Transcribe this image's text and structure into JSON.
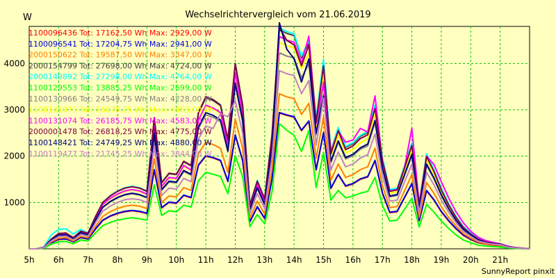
{
  "chart_data": {
    "type": "line",
    "title": "Wechselrichtervergleich vom 21.06.2019",
    "ylabel": "W",
    "xlabel": "",
    "footer": "SunnyReport pinxit",
    "ylim": [
      0,
      4800
    ],
    "yticks": [
      1000,
      2000,
      3000,
      4000
    ],
    "xlim": [
      5,
      22
    ],
    "xticks": [
      {
        "h": 5,
        "label": "5h"
      },
      {
        "h": 6,
        "label": "6h"
      },
      {
        "h": 7,
        "label": "7h"
      },
      {
        "h": 8,
        "label": "8h"
      },
      {
        "h": 9,
        "label": "9h"
      },
      {
        "h": 10,
        "label": "10h"
      },
      {
        "h": 11,
        "label": "11h"
      },
      {
        "h": 12,
        "label": "12h"
      },
      {
        "h": 13,
        "label": "13h"
      },
      {
        "h": 14,
        "label": "14h"
      },
      {
        "h": 15,
        "label": "15h"
      },
      {
        "h": 16,
        "label": "16h"
      },
      {
        "h": 17,
        "label": "17h"
      },
      {
        "h": 18,
        "label": "18h"
      },
      {
        "h": 19,
        "label": "19h"
      },
      {
        "h": 20,
        "label": "20h"
      },
      {
        "h": 21,
        "label": "21h"
      }
    ],
    "grid": true,
    "legend_position": "top-left",
    "x": [
      5.0,
      5.25,
      5.5,
      5.75,
      6.0,
      6.25,
      6.5,
      6.75,
      7.0,
      7.25,
      7.5,
      7.75,
      8.0,
      8.25,
      8.5,
      8.75,
      9.0,
      9.25,
      9.5,
      9.75,
      10.0,
      10.25,
      10.5,
      10.75,
      11.0,
      11.25,
      11.5,
      11.75,
      12.0,
      12.25,
      12.5,
      12.75,
      13.0,
      13.25,
      13.5,
      13.75,
      14.0,
      14.25,
      14.5,
      14.75,
      15.0,
      15.25,
      15.5,
      15.75,
      16.0,
      16.25,
      16.5,
      16.75,
      17.0,
      17.25,
      17.5,
      17.75,
      18.0,
      18.25,
      18.5,
      18.75,
      19.0,
      19.25,
      19.5,
      19.75,
      20.0,
      20.25,
      20.5,
      20.75,
      21.0,
      21.25,
      21.5,
      21.75,
      22.0
    ],
    "series": [
      {
        "name": "1100096436",
        "legend": "1100096436 Tot: 17162,50 Wh Max: 2929,00 W",
        "color": "#ff0000",
        "values": [
          0,
          0,
          20,
          130,
          200,
          210,
          150,
          240,
          210,
          420,
          610,
          700,
          760,
          800,
          820,
          800,
          760,
          1700,
          880,
          1000,
          980,
          1150,
          1100,
          1800,
          2000,
          1960,
          1900,
          1450,
          2450,
          1900,
          580,
          900,
          650,
          1500,
          2930,
          2880,
          2840,
          2550,
          2750,
          1700,
          2500,
          1300,
          1600,
          1350,
          1400,
          1500,
          1550,
          1900,
          1200,
          780,
          800,
          1100,
          1400,
          600,
          1250,
          1050,
          800,
          600,
          430,
          290,
          200,
          130,
          100,
          80,
          70,
          30,
          20,
          10,
          0
        ]
      },
      {
        "name": "1100096541",
        "legend": "1100096541 Tot: 17204,75 Wh Max: 2941,00 W",
        "color": "#0000dd",
        "values": [
          0,
          0,
          20,
          130,
          210,
          215,
          155,
          245,
          215,
          430,
          620,
          710,
          770,
          810,
          830,
          810,
          770,
          1710,
          890,
          1010,
          990,
          1160,
          1110,
          1810,
          2010,
          1970,
          1910,
          1460,
          2460,
          1910,
          590,
          910,
          660,
          1510,
          2941,
          2890,
          2850,
          2560,
          2760,
          1710,
          2510,
          1310,
          1610,
          1360,
          1410,
          1510,
          1560,
          1910,
          1210,
          790,
          810,
          1110,
          1410,
          610,
          1260,
          1060,
          810,
          610,
          440,
          300,
          210,
          140,
          110,
          90,
          80,
          40,
          20,
          10,
          0
        ]
      },
      {
        "name": "2000150622",
        "legend": "2000150622 Tot: 19587,50 Wh Max: 3347,00 W",
        "color": "#ff8000",
        "values": [
          0,
          0,
          25,
          150,
          230,
          240,
          170,
          270,
          240,
          480,
          700,
          800,
          870,
          920,
          940,
          920,
          870,
          1950,
          1000,
          1140,
          1120,
          1320,
          1260,
          2050,
          2300,
          2250,
          2170,
          1650,
          2800,
          2170,
          670,
          1030,
          750,
          1720,
          3347,
          3280,
          3240,
          2900,
          3140,
          1950,
          2850,
          1480,
          1830,
          1540,
          1600,
          1710,
          1770,
          2170,
          1370,
          890,
          910,
          1250,
          1600,
          680,
          1430,
          1200,
          910,
          680,
          490,
          330,
          230,
          150,
          110,
          90,
          80,
          35,
          20,
          10,
          0
        ]
      },
      {
        "name": "2000154799",
        "legend": "2000154799 Tot: 27698,00 Wh Max: 4724,00 W",
        "color": "#404040",
        "values": [
          0,
          0,
          35,
          210,
          330,
          340,
          240,
          380,
          340,
          690,
          1000,
          1140,
          1240,
          1310,
          1340,
          1310,
          1240,
          2780,
          1420,
          1620,
          1600,
          1880,
          1790,
          2920,
          3260,
          3200,
          3090,
          2350,
          3980,
          3090,
          950,
          1470,
          1070,
          2450,
          4724,
          4650,
          4600,
          4120,
          4460,
          2780,
          4050,
          2100,
          2600,
          2190,
          2270,
          2430,
          2510,
          3080,
          1950,
          1270,
          1300,
          1780,
          2270,
          970,
          2030,
          1700,
          1300,
          970,
          690,
          470,
          330,
          210,
          160,
          130,
          110,
          50,
          30,
          15,
          0
        ]
      },
      {
        "name": "2000149892",
        "legend": "2000149892 Tot: 27298,00 Wh Max: 4764,00 W",
        "color": "#00ffff",
        "values": [
          0,
          0,
          40,
          300,
          420,
          430,
          320,
          420,
          330,
          700,
          1000,
          1150,
          1250,
          1320,
          1350,
          1320,
          1250,
          2800,
          1430,
          1630,
          1610,
          1890,
          1800,
          2940,
          3280,
          3220,
          3110,
          2370,
          4000,
          3110,
          960,
          1480,
          1080,
          2470,
          4764,
          4690,
          4640,
          4160,
          4500,
          2800,
          4090,
          2120,
          2620,
          2210,
          2290,
          2450,
          2530,
          3100,
          1970,
          1280,
          1310,
          1790,
          2290,
          980,
          2050,
          1710,
          1310,
          980,
          700,
          480,
          340,
          220,
          160,
          130,
          110,
          50,
          30,
          15,
          0
        ]
      },
      {
        "name": "1100129553",
        "legend": "1100129553 Tot: 13885,25 Wh Max: 2699,00 W",
        "color": "#00ff00",
        "values": [
          0,
          0,
          15,
          100,
          150,
          160,
          110,
          190,
          170,
          340,
          500,
          570,
          620,
          650,
          670,
          650,
          620,
          1380,
          720,
          820,
          800,
          940,
          900,
          1470,
          1650,
          1610,
          1560,
          1190,
          2010,
          1560,
          480,
          740,
          540,
          1230,
          2699,
          2560,
          2450,
          2100,
          2550,
          1320,
          2080,
          1050,
          1260,
          1100,
          1140,
          1200,
          1240,
          1540,
          940,
          600,
          620,
          850,
          1090,
          470,
          960,
          790,
          600,
          440,
          300,
          190,
          130,
          80,
          60,
          50,
          40,
          20,
          10,
          5,
          0
        ]
      },
      {
        "name": "1100130966",
        "legend": "1100130966 Tot: 24549,75 Wh Max: 4228,00 W",
        "color": "#808080",
        "values": [
          0,
          0,
          30,
          190,
          290,
          300,
          210,
          340,
          300,
          610,
          890,
          1010,
          1100,
          1160,
          1190,
          1160,
          1100,
          2460,
          1260,
          1440,
          1420,
          1670,
          1590,
          2590,
          2890,
          2840,
          2740,
          2090,
          3530,
          2740,
          840,
          1300,
          950,
          2170,
          4228,
          4160,
          4120,
          3690,
          3990,
          2460,
          3590,
          1860,
          2300,
          1940,
          2010,
          2150,
          2220,
          2730,
          1730,
          1120,
          1150,
          1580,
          2010,
          860,
          1800,
          1510,
          1150,
          860,
          610,
          420,
          290,
          190,
          140,
          110,
          100,
          45,
          25,
          12,
          0
        ]
      },
      {
        "name": "1100131073",
        "legend": "1100131073 Tot: 26070,25 Wh Max: 4453,00 W",
        "color": "#ffff00",
        "values": [
          0,
          0,
          33,
          200,
          310,
          320,
          225,
          360,
          320,
          650,
          950,
          1080,
          1170,
          1240,
          1270,
          1240,
          1170,
          2620,
          1340,
          1530,
          1510,
          1780,
          1690,
          2760,
          3080,
          3020,
          2920,
          2220,
          3760,
          2920,
          900,
          1390,
          1010,
          2310,
          4453,
          4380,
          4340,
          3890,
          4210,
          2620,
          3820,
          1980,
          2450,
          2070,
          2140,
          2290,
          2370,
          2910,
          1840,
          1200,
          1230,
          1680,
          2140,
          920,
          1920,
          1610,
          1230,
          920,
          650,
          440,
          310,
          200,
          150,
          120,
          100,
          48,
          28,
          13,
          0
        ]
      },
      {
        "name": "1100131074",
        "legend": "1100131074 Tot: 26185,75 Wh Max: 4583,00 W",
        "color": "#ff00ff",
        "values": [
          0,
          0,
          34,
          205,
          315,
          325,
          228,
          365,
          325,
          660,
          960,
          1090,
          1180,
          1250,
          1280,
          1250,
          1180,
          2640,
          1350,
          1540,
          1520,
          1800,
          1700,
          2780,
          3100,
          3040,
          2940,
          2240,
          3800,
          2940,
          910,
          1400,
          1020,
          2330,
          4583,
          4500,
          4460,
          4010,
          4590,
          2700,
          3590,
          2100,
          2540,
          2300,
          2350,
          2600,
          2520,
          3300,
          1900,
          1250,
          1280,
          1750,
          2600,
          960,
          2000,
          1820,
          1450,
          1100,
          800,
          560,
          380,
          250,
          180,
          140,
          110,
          60,
          30,
          15,
          0
        ]
      },
      {
        "name": "2000001478",
        "legend": "2000001478 Tot: 26818,25 Wh Max: 4775,00 W",
        "color": "#800040",
        "values": [
          0,
          0,
          35,
          210,
          330,
          340,
          240,
          380,
          340,
          690,
          1000,
          1140,
          1240,
          1310,
          1340,
          1310,
          1240,
          2830,
          1430,
          1630,
          1610,
          1890,
          1800,
          2940,
          3280,
          3220,
          3100,
          2360,
          4000,
          3100,
          950,
          1460,
          1080,
          2460,
          4775,
          4500,
          4400,
          3950,
          4400,
          2730,
          3950,
          2050,
          2550,
          2140,
          2220,
          2380,
          2460,
          3030,
          1900,
          1240,
          1270,
          1740,
          2230,
          950,
          1990,
          1670,
          1270,
          950,
          680,
          460,
          320,
          210,
          150,
          120,
          100,
          48,
          28,
          13,
          0
        ]
      },
      {
        "name": "1100148421",
        "legend": "1100148421 Tot: 24749,25 Wh Max: 4880,00 W",
        "color": "#000080",
        "values": [
          0,
          0,
          31,
          190,
          295,
          305,
          215,
          345,
          305,
          620,
          900,
          1020,
          1110,
          1170,
          1200,
          1170,
          1110,
          2500,
          1280,
          1460,
          1440,
          1690,
          1610,
          2630,
          2940,
          2880,
          2780,
          2110,
          3580,
          2780,
          850,
          1320,
          960,
          2200,
          4880,
          4310,
          4100,
          3600,
          4100,
          2500,
          3300,
          1890,
          2330,
          1970,
          2040,
          2180,
          2260,
          2770,
          1750,
          1140,
          1170,
          1600,
          2040,
          870,
          1830,
          1530,
          1170,
          870,
          620,
          420,
          300,
          190,
          140,
          110,
          100,
          45,
          25,
          12,
          0
        ]
      },
      {
        "name": "1100119477",
        "legend": "1100119477 Tot: 21745,25 Wh Max: 3844,00 W",
        "color": "#c080c0",
        "values": [
          0,
          0,
          28,
          170,
          265,
          275,
          195,
          310,
          275,
          560,
          810,
          920,
          1000,
          1060,
          1080,
          1060,
          1000,
          2240,
          1150,
          1310,
          1290,
          1520,
          1450,
          2370,
          2650,
          2600,
          2920,
          2850,
          3200,
          2500,
          770,
          1190,
          870,
          1980,
          3844,
          3780,
          3740,
          3350,
          3630,
          2240,
          3260,
          1700,
          2090,
          1770,
          1830,
          1960,
          2030,
          2480,
          1580,
          1030,
          1050,
          1440,
          1830,
          780,
          1650,
          1380,
          1050,
          790,
          560,
          380,
          270,
          170,
          130,
          100,
          90,
          40,
          22,
          11,
          0
        ]
      }
    ]
  }
}
